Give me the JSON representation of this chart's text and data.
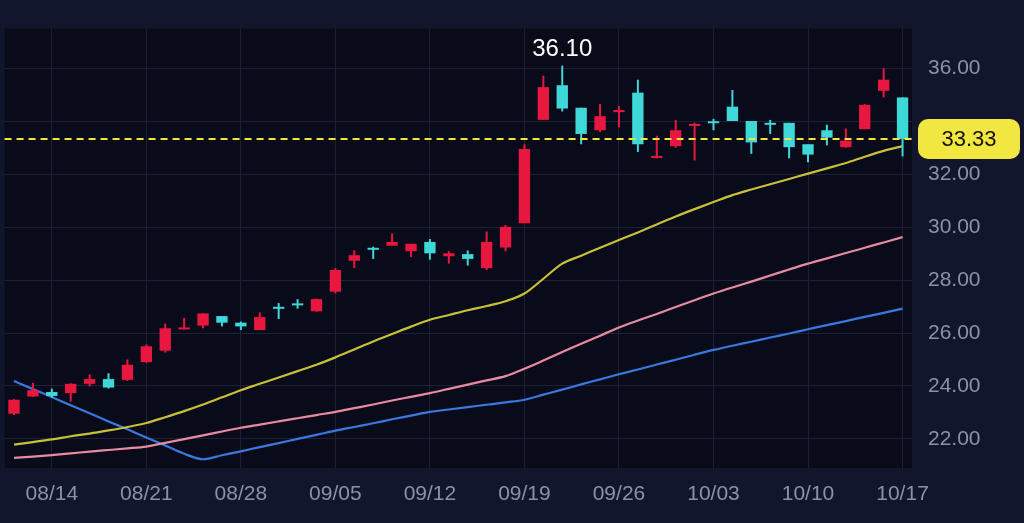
{
  "chart_data": {
    "type": "candlestick",
    "categories": [
      null,
      null,
      "08/14",
      null,
      null,
      null,
      null,
      "08/21",
      null,
      null,
      null,
      null,
      "08/28",
      null,
      null,
      null,
      null,
      "09/05",
      null,
      null,
      null,
      null,
      "09/12",
      null,
      null,
      null,
      null,
      "09/19",
      null,
      null,
      null,
      null,
      "09/26",
      null,
      null,
      null,
      null,
      "10/03",
      null,
      null,
      null,
      null,
      "10/10",
      null,
      null,
      null,
      null,
      "10/17"
    ],
    "ohlc": [
      [
        22.95,
        23.5,
        22.9,
        23.48
      ],
      [
        23.6,
        24.12,
        23.59,
        23.84
      ],
      [
        23.77,
        23.9,
        23.55,
        23.62
      ],
      [
        23.73,
        24.1,
        23.41,
        24.08
      ],
      [
        24.08,
        24.44,
        23.98,
        24.26
      ],
      [
        24.26,
        24.48,
        23.9,
        23.94
      ],
      [
        24.23,
        25.0,
        24.19,
        24.8
      ],
      [
        24.9,
        25.57,
        24.87,
        25.5
      ],
      [
        25.33,
        26.35,
        25.26,
        26.18
      ],
      [
        26.14,
        26.57,
        26.14,
        26.21
      ],
      [
        26.28,
        26.74,
        26.18,
        26.74
      ],
      [
        26.64,
        26.64,
        26.25,
        26.39
      ],
      [
        26.39,
        26.43,
        26.11,
        26.25
      ],
      [
        26.11,
        26.78,
        26.11,
        26.6
      ],
      [
        26.99,
        27.13,
        26.53,
        26.94
      ],
      [
        27.12,
        27.28,
        26.92,
        27.08
      ],
      [
        26.82,
        27.3,
        26.8,
        27.28
      ],
      [
        27.56,
        28.45,
        27.49,
        28.38
      ],
      [
        28.73,
        29.12,
        28.45,
        28.94
      ],
      [
        29.22,
        29.26,
        28.8,
        29.17
      ],
      [
        29.3,
        29.76,
        29.3,
        29.44
      ],
      [
        29.09,
        29.37,
        28.87,
        29.37
      ],
      [
        29.44,
        29.55,
        28.77,
        29.01
      ],
      [
        28.9,
        29.09,
        28.62,
        29.01
      ],
      [
        28.98,
        29.12,
        28.55,
        28.8
      ],
      [
        28.45,
        29.83,
        28.38,
        29.44
      ],
      [
        29.23,
        30.08,
        29.09,
        30.01
      ],
      [
        30.15,
        33.13,
        30.15,
        32.95
      ],
      [
        34.05,
        35.72,
        34.05,
        35.29
      ],
      [
        35.36,
        36.1,
        34.37,
        34.48
      ],
      [
        34.51,
        34.51,
        33.13,
        33.52
      ],
      [
        33.66,
        34.65,
        33.59,
        34.19
      ],
      [
        34.37,
        34.58,
        33.77,
        34.42
      ],
      [
        35.08,
        35.57,
        32.84,
        33.13
      ],
      [
        32.65,
        33.45,
        32.6,
        32.69
      ],
      [
        33.06,
        34.05,
        33.0,
        33.66
      ],
      [
        33.85,
        33.94,
        32.52,
        33.9
      ],
      [
        34.0,
        34.09,
        33.66,
        33.95
      ],
      [
        34.55,
        35.18,
        34.01,
        34.01
      ],
      [
        34.01,
        34.01,
        32.77,
        33.2
      ],
      [
        33.94,
        34.05,
        33.52,
        33.88
      ],
      [
        33.94,
        33.94,
        32.6,
        33.02
      ],
      [
        33.13,
        33.13,
        32.45,
        32.74
      ],
      [
        33.66,
        33.87,
        33.09,
        33.38
      ],
      [
        33.02,
        33.73,
        33.0,
        33.27
      ],
      [
        33.7,
        34.65,
        33.7,
        34.62
      ],
      [
        35.15,
        36.0,
        34.9,
        35.57
      ],
      [
        34.9,
        34.9,
        32.67,
        33.33
      ]
    ],
    "colors": [
      "#e8173f",
      "#e8173f",
      "#3ed8d8",
      "#e8173f",
      "#e8173f",
      "#3ed8d8",
      "#e8173f",
      "#e8173f",
      "#e8173f",
      "#e8173f",
      "#e8173f",
      "#3ed8d8",
      "#3ed8d8",
      "#e8173f",
      "#3ed8d8",
      "#3ed8d8",
      "#e8173f",
      "#e8173f",
      "#e8173f",
      "#3ed8d8",
      "#e8173f",
      "#e8173f",
      "#3ed8d8",
      "#e8173f",
      "#3ed8d8",
      "#e8173f",
      "#e8173f",
      "#e8173f",
      "#e8173f",
      "#3ed8d8",
      "#3ed8d8",
      "#e8173f",
      "#e8173f",
      "#3ed8d8",
      "#e8173f",
      "#e8173f",
      "#e8173f",
      "#3ed8d8",
      "#3ed8d8",
      "#3ed8d8",
      "#3ed8d8",
      "#3ed8d8",
      "#3ed8d8",
      "#3ed8d8",
      "#e8173f",
      "#e8173f",
      "#e8173f",
      "#3ed8d8"
    ],
    "series": [
      {
        "type": "line",
        "color": "#c8c038",
        "values": [
          21.78,
          21.88,
          21.98,
          22.1,
          22.2,
          22.32,
          22.45,
          22.6,
          22.82,
          23.05,
          23.3,
          23.57,
          23.84,
          24.08,
          24.32,
          24.56,
          24.8,
          25.08,
          25.38,
          25.68,
          25.96,
          26.24,
          26.5,
          26.68,
          26.86,
          27.02,
          27.2,
          27.49,
          28.05,
          28.62,
          28.92,
          29.22,
          29.51,
          29.8,
          30.1,
          30.4,
          30.68,
          30.95,
          31.21,
          31.42,
          31.62,
          31.82,
          32.02,
          32.22,
          32.42,
          32.66,
          32.88,
          33.06
        ]
      },
      {
        "type": "line",
        "color": "#e88aa0",
        "values": [
          21.28,
          21.33,
          21.39,
          21.45,
          21.52,
          21.58,
          21.64,
          21.71,
          21.85,
          21.99,
          22.13,
          22.28,
          22.42,
          22.54,
          22.66,
          22.78,
          22.9,
          23.02,
          23.16,
          23.3,
          23.45,
          23.59,
          23.73,
          23.89,
          24.05,
          24.21,
          24.37,
          24.65,
          24.96,
          25.28,
          25.59,
          25.9,
          26.21,
          26.47,
          26.72,
          26.98,
          27.24,
          27.49,
          27.72,
          27.94,
          28.17,
          28.4,
          28.62,
          28.82,
          29.02,
          29.22,
          29.42,
          29.62
        ]
      },
      {
        "type": "line",
        "color": "#3a78e0",
        "values": [
          24.19,
          23.88,
          23.58,
          23.27,
          22.97,
          22.66,
          22.36,
          22.05,
          21.75,
          21.44,
          21.23,
          21.38,
          21.53,
          21.69,
          21.84,
          22.0,
          22.15,
          22.31,
          22.45,
          22.59,
          22.74,
          22.88,
          23.02,
          23.11,
          23.2,
          23.29,
          23.38,
          23.48,
          23.67,
          23.86,
          24.06,
          24.25,
          24.44,
          24.62,
          24.81,
          24.99,
          25.18,
          25.36,
          25.52,
          25.67,
          25.83,
          25.98,
          26.14,
          26.3,
          26.45,
          26.61,
          26.76,
          26.92
        ]
      }
    ],
    "ylim": [
      20.9,
      37.5
    ],
    "yticks": [
      {
        "value": 22,
        "label": "22.00"
      },
      {
        "value": 24,
        "label": "24.00"
      },
      {
        "value": 26,
        "label": "26.00"
      },
      {
        "value": 28,
        "label": "28.00"
      },
      {
        "value": 30,
        "label": "30.00"
      },
      {
        "value": 32,
        "label": "32.00"
      },
      {
        "value": 34,
        "label": null
      },
      {
        "value": 36,
        "label": "36.00"
      }
    ],
    "grid": true,
    "ref_lines": [
      {
        "axis": "y",
        "value": 33.33,
        "label": "33.33",
        "color": "#f2e640",
        "line_style": "dashed"
      }
    ],
    "annotations": [
      {
        "text": "36.10",
        "y": 36.1
      }
    ]
  }
}
